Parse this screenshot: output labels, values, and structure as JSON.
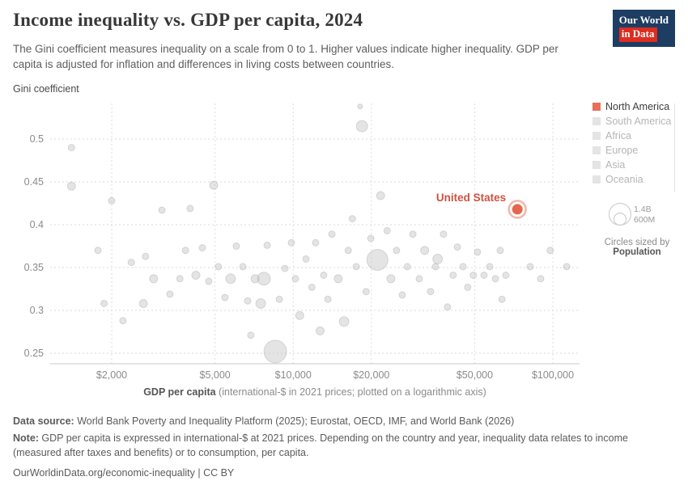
{
  "header": {
    "title": "Income inequality vs. GDP per capita, 2024",
    "subtitle": "The Gini coefficient measures inequality on a scale from 0 to 1. Higher values indicate higher inequality. GDP per capita is adjusted for inflation and differences in living costs between countries.",
    "logo_line1": "Our World",
    "logo_line2": "in Data"
  },
  "y_axis_title": "Gini coefficient",
  "legend": {
    "items": [
      {
        "label": "North America",
        "color": "#e8705a",
        "active": true
      },
      {
        "label": "South America",
        "color": "#e4e4e4",
        "active": false
      },
      {
        "label": "Africa",
        "color": "#e4e4e4",
        "active": false
      },
      {
        "label": "Europe",
        "color": "#e4e4e4",
        "active": false
      },
      {
        "label": "Asia",
        "color": "#e4e4e4",
        "active": false
      },
      {
        "label": "Oceania",
        "color": "#e4e4e4",
        "active": false
      }
    ],
    "size_legend": {
      "big": "1.4B",
      "small": "600M",
      "caption": "Circles sized by",
      "caption_bold": "Population"
    }
  },
  "chart_data": {
    "type": "scatter",
    "title": "Income inequality vs. GDP per capita, 2024",
    "xlabel_bold": "GDP per capita",
    "xlabel_rest": " (international-$ in 2021 prices; plotted on a logarithmic axis)",
    "ylabel": "Gini coefficient",
    "x_scale": "log",
    "xlim": [
      1100,
      130000
    ],
    "ylim": [
      0.23,
      0.56
    ],
    "grid": true,
    "x_ticks": [
      {
        "value": 2000,
        "label": "$2,000"
      },
      {
        "value": 5000,
        "label": "$5,000"
      },
      {
        "value": 10000,
        "label": "$10,000"
      },
      {
        "value": 20000,
        "label": "$20,000"
      },
      {
        "value": 50000,
        "label": "$50,000"
      },
      {
        "value": 100000,
        "label": "$100,000"
      }
    ],
    "y_ticks": [
      {
        "value": 0.25,
        "label": "0.25"
      },
      {
        "value": 0.3,
        "label": "0.3"
      },
      {
        "value": 0.35,
        "label": "0.35"
      },
      {
        "value": 0.4,
        "label": "0.4"
      },
      {
        "value": 0.45,
        "label": "0.45"
      },
      {
        "value": 0.5,
        "label": "0.5"
      }
    ],
    "highlight": {
      "name": "United States",
      "gdp": 73000,
      "gini": 0.418,
      "r": 6.5,
      "ring_r": 10.5,
      "color": "#e4664f",
      "ring_color": "#f2b6a8",
      "label_color": "#cf5240"
    },
    "point_style": {
      "fill": "#c4c4c4",
      "fill_opacity": 0.45,
      "stroke": "#9e9e9e",
      "stroke_opacity": 0.35
    },
    "points": [
      [
        1400,
        0.49,
        4
      ],
      [
        1400,
        0.445,
        5
      ],
      [
        1770,
        0.37,
        4
      ],
      [
        1870,
        0.308,
        4
      ],
      [
        2000,
        0.428,
        4
      ],
      [
        2210,
        0.288,
        4
      ],
      [
        2380,
        0.356,
        4
      ],
      [
        2650,
        0.308,
        5
      ],
      [
        2700,
        0.363,
        4
      ],
      [
        2900,
        0.337,
        5
      ],
      [
        3120,
        0.417,
        4
      ],
      [
        3350,
        0.319,
        4
      ],
      [
        3660,
        0.337,
        4
      ],
      [
        3850,
        0.37,
        4
      ],
      [
        4010,
        0.419,
        4
      ],
      [
        4220,
        0.341,
        5
      ],
      [
        4470,
        0.373,
        4
      ],
      [
        4730,
        0.334,
        4
      ],
      [
        4940,
        0.446,
        5
      ],
      [
        5150,
        0.351,
        4
      ],
      [
        5460,
        0.315,
        4
      ],
      [
        5740,
        0.337,
        6
      ],
      [
        6040,
        0.375,
        4
      ],
      [
        6400,
        0.351,
        4
      ],
      [
        6680,
        0.311,
        4
      ],
      [
        6870,
        0.271,
        4
      ],
      [
        7130,
        0.337,
        5
      ],
      [
        7500,
        0.308,
        6
      ],
      [
        7710,
        0.337,
        8
      ],
      [
        7940,
        0.376,
        4
      ],
      [
        8530,
        0.252,
        14
      ],
      [
        8840,
        0.313,
        4
      ],
      [
        9290,
        0.349,
        4
      ],
      [
        9840,
        0.379,
        4
      ],
      [
        10200,
        0.337,
        4
      ],
      [
        10600,
        0.294,
        5
      ],
      [
        11200,
        0.36,
        4
      ],
      [
        11800,
        0.327,
        4
      ],
      [
        12200,
        0.379,
        4
      ],
      [
        12700,
        0.276,
        5
      ],
      [
        13100,
        0.341,
        4
      ],
      [
        13600,
        0.313,
        4
      ],
      [
        14100,
        0.389,
        4
      ],
      [
        14900,
        0.337,
        5
      ],
      [
        15700,
        0.287,
        6
      ],
      [
        16300,
        0.37,
        4
      ],
      [
        16900,
        0.407,
        4
      ],
      [
        17500,
        0.351,
        4
      ],
      [
        18100,
        0.538,
        3
      ],
      [
        18400,
        0.515,
        7
      ],
      [
        19100,
        0.322,
        4
      ],
      [
        19900,
        0.384,
        4
      ],
      [
        21100,
        0.359,
        13
      ],
      [
        21700,
        0.434,
        5
      ],
      [
        23000,
        0.393,
        4
      ],
      [
        23800,
        0.337,
        5
      ],
      [
        25000,
        0.37,
        4
      ],
      [
        26300,
        0.318,
        4
      ],
      [
        27500,
        0.351,
        4
      ],
      [
        28900,
        0.389,
        4
      ],
      [
        30600,
        0.337,
        4
      ],
      [
        32100,
        0.37,
        5
      ],
      [
        33800,
        0.322,
        4
      ],
      [
        35300,
        0.351,
        4
      ],
      [
        36000,
        0.36,
        6
      ],
      [
        37900,
        0.389,
        4
      ],
      [
        39300,
        0.304,
        4
      ],
      [
        41300,
        0.341,
        4
      ],
      [
        42900,
        0.374,
        4
      ],
      [
        45100,
        0.351,
        4
      ],
      [
        47000,
        0.327,
        4
      ],
      [
        49400,
        0.341,
        4
      ],
      [
        51300,
        0.368,
        4
      ],
      [
        54300,
        0.341,
        4
      ],
      [
        57100,
        0.351,
        4
      ],
      [
        60100,
        0.337,
        4
      ],
      [
        62700,
        0.37,
        4
      ],
      [
        63700,
        0.313,
        4
      ],
      [
        65900,
        0.341,
        4
      ],
      [
        81800,
        0.351,
        4
      ],
      [
        89800,
        0.337,
        4
      ],
      [
        97700,
        0.37,
        4
      ],
      [
        113000,
        0.351,
        4
      ]
    ]
  },
  "footer": {
    "source_label": "Data source:",
    "source_text": " World Bank Poverty and Inequality Platform (2025); Eurostat, OECD, IMF, and World Bank (2026)",
    "note_label": "Note:",
    "note_text": " GDP per capita is expressed in international-$ at 2021 prices. Depending on the country and year, inequality data relates to income (measured after taxes and benefits) or to consumption, per capita.",
    "link": "OurWorldinData.org/economic-inequality | CC BY"
  }
}
